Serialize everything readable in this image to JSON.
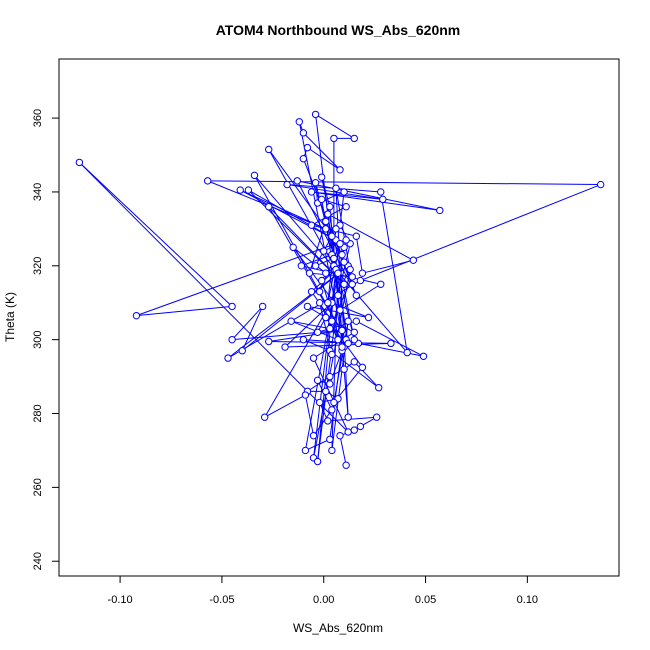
{
  "chart_data": {
    "type": "line",
    "title": "ATOM4 Northbound WS_Abs_620nm",
    "xlabel": "WS_Abs_620nm",
    "ylabel": "Theta (K)",
    "xlim": [
      -0.13,
      0.145
    ],
    "ylim": [
      236,
      376
    ],
    "xticks": [
      -0.1,
      -0.05,
      0.0,
      0.05,
      0.1
    ],
    "xtick_labels": [
      "-0.10",
      "-0.05",
      "0.00",
      "0.05",
      "0.10"
    ],
    "yticks": [
      240,
      260,
      280,
      300,
      320,
      340,
      360
    ],
    "ytick_labels": [
      "240",
      "260",
      "280",
      "300",
      "320",
      "340",
      "360"
    ],
    "marker": "open-circle",
    "grid": false,
    "legend": "none",
    "color": "#0000ff",
    "series": [
      {
        "points": [
          [
            0.011,
            266.0
          ],
          [
            0.008,
            274.0
          ],
          [
            0.015,
            275.5
          ],
          [
            0.018,
            276.5
          ],
          [
            0.026,
            279.0
          ],
          [
            0.002,
            278.0
          ],
          [
            -0.002,
            283.0
          ],
          [
            0.007,
            284.0
          ],
          [
            0.001,
            286.0
          ],
          [
            -0.008,
            286.0
          ],
          [
            0.003,
            290.0
          ],
          [
            0.01,
            292.0
          ],
          [
            0.015,
            294.0
          ],
          [
            0.027,
            287.0
          ],
          [
            0.003,
            297.0
          ],
          [
            -0.01,
            300.0
          ],
          [
            0.017,
            299.0
          ],
          [
            0.049,
            295.5
          ],
          [
            0.016,
            305.0
          ],
          [
            -0.003,
            302.0
          ],
          [
            0.001,
            306.0
          ],
          [
            -0.008,
            309.0
          ],
          [
            0.022,
            306.0
          ],
          [
            0.004,
            310.0
          ],
          [
            -0.019,
            298.0
          ],
          [
            0.033,
            299.0
          ],
          [
            -0.027,
            299.5
          ],
          [
            0.009,
            302.5
          ],
          [
            -0.045,
            300.0
          ],
          [
            -0.03,
            309.0
          ],
          [
            -0.04,
            297.0
          ],
          [
            0.012,
            320.0
          ],
          [
            -0.047,
            295.0
          ],
          [
            0.018,
            316.0
          ],
          [
            0.136,
            342.0
          ],
          [
            -0.057,
            343.0
          ],
          [
            0.001,
            330.0
          ],
          [
            -0.041,
            340.5
          ],
          [
            0.006,
            327.0
          ],
          [
            -0.037,
            340.5
          ],
          [
            0.01,
            315.0
          ],
          [
            -0.027,
            336.0
          ],
          [
            0.011,
            300.0
          ],
          [
            -0.034,
            344.5
          ],
          [
            0.041,
            296.5
          ],
          [
            0.028,
            340.0
          ],
          [
            -0.018,
            342.0
          ],
          [
            0.029,
            338.0
          ],
          [
            -0.006,
            340.0
          ],
          [
            0.057,
            335.0
          ],
          [
            -0.013,
            343.0
          ],
          [
            0.016,
            312.0
          ],
          [
            0.004,
            328.0
          ],
          [
            -0.027,
            351.5
          ],
          [
            0.005,
            320.0
          ],
          [
            0.005,
            354.5
          ],
          [
            0.015,
            354.5
          ],
          [
            -0.004,
            361.0
          ],
          [
            0.01,
            298.0
          ],
          [
            -0.012,
            359.0
          ],
          [
            -0.01,
            356.0
          ],
          [
            0.008,
            346.0
          ],
          [
            -0.008,
            352.0
          ],
          [
            -0.01,
            349.0
          ],
          [
            0.014,
            315.0
          ],
          [
            0.006,
            341.0
          ],
          [
            0.012,
            279.0
          ],
          [
            0.003,
            336.0
          ],
          [
            -0.001,
            344.0
          ],
          [
            0.015,
            300.0
          ],
          [
            -0.004,
            342.5
          ],
          [
            -0.003,
            337.0
          ],
          [
            0.01,
            340.0
          ],
          [
            0.008,
            331.0
          ],
          [
            0.013,
            326.0
          ],
          [
            0.007,
            312.0
          ],
          [
            -0.001,
            338.0
          ],
          [
            0.011,
            336.0
          ],
          [
            -0.006,
            331.0
          ],
          [
            0.016,
            328.0
          ],
          [
            0.019,
            318.0
          ],
          [
            0.044,
            321.5
          ],
          [
            0.002,
            334.0
          ],
          [
            0.012,
            299.0
          ],
          [
            0.004,
            323.0
          ],
          [
            -0.011,
            320.0
          ],
          [
            0.028,
            315.0
          ],
          [
            0.008,
            308.0
          ],
          [
            -0.015,
            325.0
          ],
          [
            0.001,
            318.0
          ],
          [
            0.01,
            321.0
          ],
          [
            -0.006,
            313.0
          ],
          [
            0.004,
            305.0
          ],
          [
            0.009,
            297.0
          ],
          [
            0.003,
            288.0
          ],
          [
            -0.003,
            289.0
          ],
          [
            0.004,
            281.0
          ],
          [
            -0.005,
            274.0
          ],
          [
            -0.009,
            285.0
          ],
          [
            -0.029,
            279.0
          ],
          [
            0.013,
            319.0
          ],
          [
            -0.005,
            268.0
          ],
          [
            0.006,
            319.0
          ],
          [
            -0.003,
            267.0
          ],
          [
            0.01,
            325.0
          ],
          [
            -0.001,
            316.0
          ],
          [
            0.009,
            298.0
          ],
          [
            0.003,
            273.0
          ],
          [
            -0.009,
            270.0
          ],
          [
            0.007,
            318.0
          ],
          [
            0.004,
            270.0
          ],
          [
            0.012,
            305.0
          ],
          [
            0.005,
            283.0
          ],
          [
            0.019,
            292.5
          ],
          [
            0.001,
            306.0
          ],
          [
            0.015,
            302.0
          ],
          [
            -0.005,
            295.0
          ],
          [
            0.012,
            275.0
          ],
          [
            -0.12,
            348.0
          ],
          [
            -0.045,
            309.0
          ],
          [
            -0.092,
            306.5
          ],
          [
            0.011,
            327.0
          ],
          [
            0.0,
            324.0
          ],
          [
            0.005,
            322.0
          ],
          [
            -0.002,
            313.0
          ],
          [
            0.008,
            326.0
          ],
          [
            0.002,
            310.0
          ],
          [
            0.006,
            330.0
          ],
          [
            -0.004,
            320.0
          ],
          [
            0.009,
            323.0
          ],
          [
            0.001,
            332.0
          ],
          [
            -0.007,
            318.0
          ],
          [
            0.014,
            317.0
          ],
          [
            0.003,
            303.0
          ],
          [
            -0.016,
            305.0
          ],
          [
            0.007,
            300.0
          ],
          [
            -0.002,
            310.0
          ],
          [
            0.004,
            296.0
          ]
        ]
      }
    ]
  }
}
